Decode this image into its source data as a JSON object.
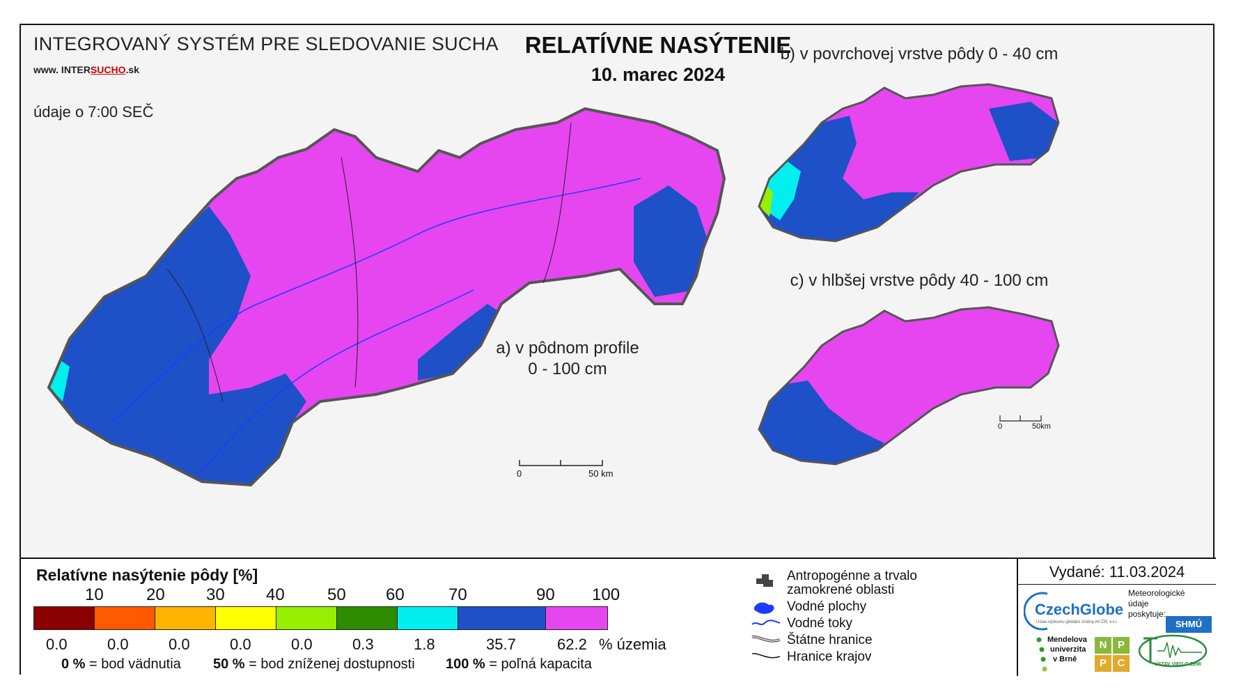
{
  "header": {
    "system_name": "INTEGROVANÝ SYSTÉM PRE SLEDOVANIE SUCHA",
    "website_prefix": "www. INTER",
    "website_highlight": "SUCHO",
    "website_suffix": ".sk",
    "data_time": "údaje o 7:00 SEČ",
    "title": "RELATÍVNE NASÝTENIE",
    "date": "10. marec 2024"
  },
  "maps": {
    "a_line1": "a) v pôdnom profile",
    "a_line2": "0 - 100 cm",
    "b_label": "b) v povrchovej vrstve pôdy 0 - 40 cm",
    "c_label": "c) v hlbšej vrstve pôdy 40 - 100 cm",
    "scale_zero": "0",
    "scale_end": "50 km",
    "scale_end_small": "50km"
  },
  "legend": {
    "title": "Relatívne nasýtenie pôdy [%]",
    "ticks": [
      "10",
      "20",
      "30",
      "40",
      "50",
      "60",
      "70",
      "90",
      "100"
    ],
    "classes": [
      {
        "color": "#8b0000",
        "share": "0.0"
      },
      {
        "color": "#ff5a00",
        "share": "0.0"
      },
      {
        "color": "#ffb400",
        "share": "0.0"
      },
      {
        "color": "#ffff00",
        "share": "0.0"
      },
      {
        "color": "#96f000",
        "share": "0.0"
      },
      {
        "color": "#2d8c00",
        "share": "0.3"
      },
      {
        "color": "#00f0f0",
        "share": "1.8"
      },
      {
        "color": "#1e50c8",
        "share": "35.7"
      },
      {
        "color": "#e646f0",
        "share": "62.2"
      }
    ],
    "share_unit": "% územia",
    "note1_value": "0 %",
    "note1_text": "= bod vädnutia",
    "note2_value": "50 %",
    "note2_text": "= bod zníženej dostupnosti",
    "note3_value": "100 %",
    "note3_text": "= poľná kapacita"
  },
  "symbols": {
    "anthropogenic_line1": "Antropogénne a trvalo",
    "anthropogenic_line2": "zamokrené oblasti",
    "water_bodies": "Vodné plochy",
    "rivers": "Vodné toky",
    "state_border": "Štátne hranice",
    "region_border": "Hranice krajov"
  },
  "issued": {
    "text": "Vydané: 11.03.2024",
    "czechglobe": "CzechGlobe",
    "czechglobe_sub": "Ústav výzkumu globální změny AV ČR, v.v.i.",
    "meteo_line1": "Meteorologické",
    "meteo_line2": "údaje",
    "meteo_line3": "poskytuje:",
    "shmu": "SHMÚ",
    "mendel_line1": "Mendelova",
    "mendel_line2": "univerzita",
    "mendel_line3": "v Brně",
    "nppc": [
      "N",
      "P",
      "P",
      "C"
    ],
    "earth_institute": "ÚSTAV VIED O ZEMI"
  },
  "colors": {
    "magenta": "#e646f0",
    "blue": "#1e50c8",
    "cyan": "#00f0f0",
    "green": "#2d8c00",
    "lime": "#96f000",
    "river": "#1a3cff"
  }
}
